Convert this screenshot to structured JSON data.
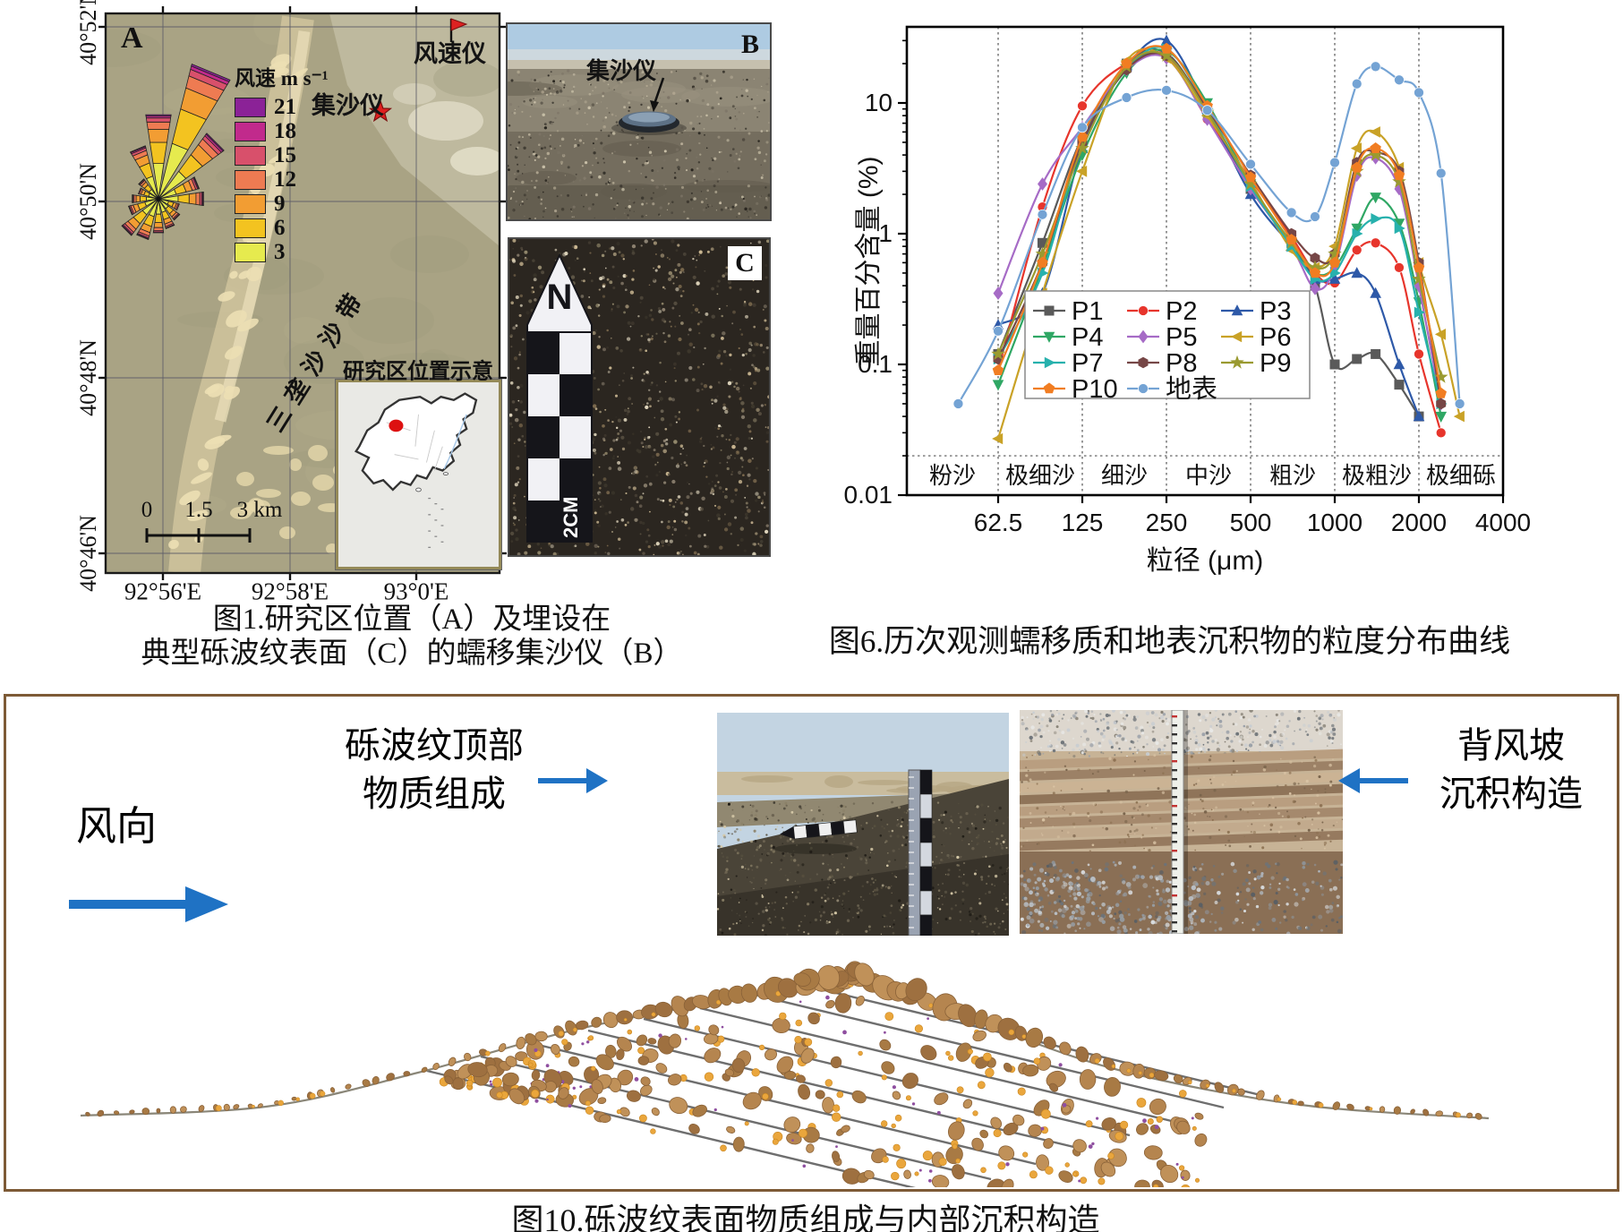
{
  "figure1": {
    "panel_a_label": "A",
    "lat_labels": [
      "40°52'N",
      "40°50'N",
      "40°48'N",
      "40°46'N"
    ],
    "lon_labels": [
      "92°56'E",
      "92°58'E",
      "93°0'E"
    ],
    "wind_rose": {
      "title": "风速 m s⁻¹",
      "speeds": [
        "21",
        "18",
        "15",
        "12",
        "9",
        "6",
        "3"
      ],
      "colors": [
        "#8b2297",
        "#c12a8c",
        "#d8506b",
        "#ee7b52",
        "#f29d33",
        "#f3c320",
        "#e6ea4e"
      ],
      "petals": [
        {
          "dir": 0,
          "len": 92
        },
        {
          "dir": 22.5,
          "len": 152
        },
        {
          "dir": 45,
          "len": 88
        },
        {
          "dir": 67.5,
          "len": 44
        },
        {
          "dir": 90,
          "len": 48
        },
        {
          "dir": 112.5,
          "len": 22
        },
        {
          "dir": 135,
          "len": 27
        },
        {
          "dir": 157.5,
          "len": 32
        },
        {
          "dir": 180,
          "len": 36
        },
        {
          "dir": 202.5,
          "len": 44
        },
        {
          "dir": 225,
          "len": 48
        },
        {
          "dir": 247.5,
          "len": 32
        },
        {
          "dir": 270,
          "len": 27
        },
        {
          "dir": 292.5,
          "len": 21
        },
        {
          "dir": 315,
          "len": 25
        },
        {
          "dir": 337.5,
          "len": 58
        }
      ]
    },
    "anemometer_label": "风速仪",
    "sand_trap_label": "集沙仪",
    "dune_belt_label": "三垄沙沙带",
    "inset_title": "研究区位置示意",
    "scale_bar_labels": [
      "0",
      "1.5",
      "3 km"
    ],
    "photo_b": {
      "label": "B",
      "annotation": "集沙仪"
    },
    "photo_c": {
      "label": "C",
      "north_label": "N",
      "scale_label": "2CM"
    },
    "caption_line1": "图1.研究区位置（A）及埋设在",
    "caption_line2": "典型砾波纹表面（C）的蠕移集沙仪（B）"
  },
  "figure6": {
    "caption": "图6.历次观测蠕移质和地表沉积物的粒度分布曲线"
  },
  "chart_data": {
    "type": "line",
    "title": "",
    "xlabel": "粒径 (μm)",
    "ylabel": "重量百分含量 (%)",
    "x_scale": "log",
    "y_scale": "log",
    "xlim": [
      29,
      4000
    ],
    "ylim": [
      0.01,
      38
    ],
    "x_ticks": [
      "62.5",
      "125",
      "250",
      "500",
      "1000",
      "2000",
      "4000"
    ],
    "y_ticks": [
      "0.01",
      "0.1",
      "1",
      "10"
    ],
    "grain_size_classes": [
      "粉沙",
      "极细沙",
      "细沙",
      "中沙",
      "粗沙",
      "极粗沙",
      "极细砾"
    ],
    "class_boundaries": [
      62.5,
      125,
      250,
      500,
      1000,
      2000
    ],
    "grid": "dotted-class-boundaries",
    "legend_position": "inside-bottom-left",
    "x": [
      45,
      62.5,
      90,
      125,
      180,
      250,
      350,
      500,
      700,
      850,
      1000,
      1200,
      1400,
      1700,
      2000,
      2400,
      2800
    ],
    "series": [
      {
        "name": "P1",
        "color": "#5a5a5a",
        "marker": "square",
        "values": [
          null,
          0.12,
          0.85,
          5.5,
          20,
          24,
          8.5,
          2.2,
          0.85,
          0.4,
          0.1,
          0.11,
          0.12,
          0.07,
          0.04,
          null,
          null
        ]
      },
      {
        "name": "P2",
        "color": "#e7352c",
        "marker": "circle",
        "values": [
          null,
          0.09,
          1.6,
          9.5,
          20,
          23,
          7.5,
          2.6,
          0.95,
          0.5,
          0.42,
          0.75,
          0.85,
          0.55,
          0.12,
          0.03,
          null
        ]
      },
      {
        "name": "P3",
        "color": "#2e59a8",
        "marker": "triangle-up",
        "values": [
          null,
          0.2,
          0.35,
          4.5,
          19,
          30,
          9,
          2.0,
          0.8,
          0.45,
          0.45,
          0.5,
          0.35,
          0.1,
          0.04,
          null,
          null
        ]
      },
      {
        "name": "P4",
        "color": "#2fa764",
        "marker": "triangle-down",
        "values": [
          null,
          0.07,
          0.55,
          4.0,
          17,
          25,
          10,
          2.4,
          0.85,
          0.5,
          0.55,
          1.1,
          1.9,
          1.2,
          0.3,
          0.04,
          null
        ]
      },
      {
        "name": "P5",
        "color": "#a66bc6",
        "marker": "diamond",
        "values": [
          null,
          0.35,
          2.4,
          6.5,
          18,
          22,
          7.5,
          2.2,
          0.8,
          0.38,
          0.55,
          2.8,
          3.8,
          2.2,
          0.4,
          0.05,
          null
        ]
      },
      {
        "name": "P6",
        "color": "#c9a227",
        "marker": "triangle-left",
        "values": [
          null,
          0.027,
          0.35,
          3.0,
          21,
          22,
          8.0,
          2.5,
          0.75,
          0.55,
          0.8,
          4.5,
          6.0,
          3.2,
          0.6,
          0.17,
          0.04
        ]
      },
      {
        "name": "P7",
        "color": "#27b1ad",
        "marker": "triangle-right",
        "values": [
          null,
          0.11,
          0.5,
          5.0,
          18,
          26,
          9.0,
          2.3,
          0.8,
          0.45,
          0.5,
          1.0,
          1.3,
          1.1,
          0.25,
          0.05,
          null
        ]
      },
      {
        "name": "P8",
        "color": "#764646",
        "marker": "hexagon",
        "values": [
          null,
          0.11,
          0.6,
          5.0,
          18,
          23,
          9.0,
          2.8,
          1.0,
          0.65,
          0.7,
          3.5,
          4.2,
          3.0,
          0.6,
          0.05,
          null
        ]
      },
      {
        "name": "P9",
        "color": "#9a9a30",
        "marker": "star",
        "values": [
          null,
          0.12,
          0.7,
          4.5,
          19,
          23,
          8.5,
          2.4,
          0.85,
          0.55,
          0.7,
          3.0,
          4.0,
          2.5,
          0.45,
          0.08,
          null
        ]
      },
      {
        "name": "P10",
        "color": "#f17d22",
        "marker": "pentagon",
        "values": [
          null,
          0.09,
          0.6,
          5.5,
          20,
          26,
          9.5,
          2.7,
          0.9,
          0.5,
          0.6,
          3.2,
          4.5,
          2.8,
          0.55,
          0.06,
          null
        ]
      },
      {
        "name": "地表",
        "color": "#74a3d4",
        "marker": "circle",
        "values": [
          0.05,
          0.18,
          1.4,
          6.5,
          11,
          12.5,
          8.8,
          3.4,
          1.45,
          1.35,
          3.5,
          14,
          19,
          15,
          12,
          2.9,
          0.05
        ]
      }
    ]
  },
  "figure10": {
    "border_color": "#7d5a36",
    "arrow_color": "#1f72c4",
    "wind_label": "风向",
    "crest_label_line1": "砾波纹顶部",
    "crest_label_line2": "物质组成",
    "lee_label_line1": "背风坡",
    "lee_label_line2": "沉积构造",
    "pebble_colors": {
      "gravel": "#b5854f",
      "gravel_edge": "#8a6238",
      "sand": "#eaa63c",
      "fines": "#8f4fa0",
      "strata": "#6e6e6e"
    },
    "caption": "图10.砾波纹表面物质组成与内部沉积构造"
  }
}
